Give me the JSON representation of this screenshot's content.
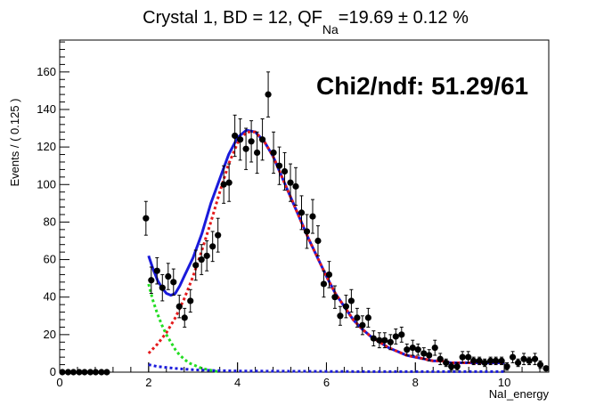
{
  "chart_data": {
    "type": "scatter",
    "title": {
      "prefix": "Crystal 1, BD = 12, QF",
      "subscript": "Na",
      "suffix": "=19.69 ± 0.12 %"
    },
    "xlabel": "NaI_energy",
    "ylabel": "Events / ( 0.125 )",
    "annotation": "Chi2/ndf: 51.29/61",
    "xlim": [
      0,
      11
    ],
    "ylim": [
      0,
      177
    ],
    "x_major_ticks": [
      0,
      2,
      4,
      6,
      8,
      10
    ],
    "y_major_ticks": [
      0,
      20,
      40,
      60,
      80,
      100,
      120,
      140,
      160
    ],
    "x_minor_step": 0.4,
    "y_minor_step": 4,
    "grid": false,
    "legend": "none",
    "series": [
      {
        "kind": "points_with_errors",
        "color": "#000000",
        "x": [
          0.06,
          0.19,
          0.31,
          0.44,
          0.56,
          0.69,
          0.81,
          0.94,
          1.06,
          1.94,
          2.06,
          2.19,
          2.31,
          2.44,
          2.56,
          2.69,
          2.81,
          2.94,
          3.06,
          3.19,
          3.31,
          3.44,
          3.56,
          3.69,
          3.81,
          3.94,
          4.06,
          4.19,
          4.31,
          4.44,
          4.56,
          4.69,
          4.81,
          4.94,
          5.06,
          5.19,
          5.31,
          5.44,
          5.56,
          5.69,
          5.81,
          5.94,
          6.06,
          6.19,
          6.31,
          6.44,
          6.56,
          6.69,
          6.81,
          6.94,
          7.06,
          7.19,
          7.31,
          7.44,
          7.56,
          7.69,
          7.81,
          7.94,
          8.06,
          8.19,
          8.31,
          8.44,
          8.56,
          8.69,
          8.81,
          8.94,
          9.06,
          9.19,
          9.31,
          9.44,
          9.56,
          9.69,
          9.81,
          9.94,
          10.06,
          10.19,
          10.31,
          10.44,
          10.56,
          10.69,
          10.81,
          10.94
        ],
        "y": [
          0,
          0,
          0,
          0,
          0,
          0,
          0,
          0,
          0,
          82,
          49,
          54,
          45,
          51,
          48,
          35,
          29,
          38,
          57,
          60,
          62,
          67,
          73,
          100,
          101,
          126,
          124,
          119,
          123,
          117,
          124,
          148,
          117,
          110,
          107,
          101,
          99,
          85,
          75,
          83,
          70,
          47,
          52,
          40,
          30,
          35,
          38,
          29,
          25,
          29,
          18,
          17,
          17,
          16,
          19,
          20,
          12,
          13,
          12,
          10,
          9,
          13,
          7,
          5,
          3,
          3,
          8,
          8,
          6,
          6,
          5,
          6,
          6,
          6,
          3,
          8,
          5,
          7,
          6,
          7,
          4,
          2
        ],
        "err": [
          0,
          0,
          0,
          0,
          0,
          0,
          0,
          0,
          0,
          9,
          7,
          7,
          7,
          7,
          7,
          6,
          5,
          6,
          8,
          8,
          8,
          8,
          9,
          10,
          10,
          11,
          11,
          11,
          11,
          11,
          11,
          12,
          11,
          10,
          10,
          10,
          10,
          9,
          9,
          9,
          8,
          7,
          7,
          6,
          5,
          6,
          6,
          5,
          5,
          5,
          4,
          4,
          4,
          4,
          4,
          4,
          3,
          4,
          3,
          3,
          3,
          4,
          3,
          2,
          2,
          2,
          3,
          3,
          2,
          2,
          2,
          2,
          2,
          2,
          2,
          3,
          2,
          3,
          2,
          3,
          2,
          1
        ]
      },
      {
        "kind": "curve",
        "color": "#1a1adb",
        "dash": "solid",
        "x": [
          2.0,
          2.1,
          2.2,
          2.3,
          2.4,
          2.5,
          2.6,
          2.7,
          2.8,
          3.0,
          3.2,
          3.4,
          3.6,
          3.8,
          4.0,
          4.2,
          4.4,
          4.6,
          4.8,
          5.0,
          5.2,
          5.4,
          5.6,
          5.8,
          6.0,
          6.2,
          6.4,
          6.6,
          6.8,
          7.0,
          7.2,
          7.4,
          7.6,
          7.8,
          8.0,
          8.2,
          8.4,
          8.6,
          8.8,
          9.0,
          9.2,
          9.4,
          9.6,
          9.8,
          10.0
        ],
        "y": [
          62,
          55,
          49,
          45,
          42,
          41,
          42,
          46,
          51,
          61,
          74,
          90,
          103,
          116,
          125,
          129,
          128,
          123,
          115,
          104,
          93,
          82,
          71,
          61,
          51,
          42,
          35,
          28,
          23,
          19,
          16,
          13,
          11,
          9,
          8,
          7,
          6,
          6,
          5,
          5,
          5,
          5,
          5,
          5,
          5
        ]
      },
      {
        "kind": "curve",
        "color": "#e41a1c",
        "dash": "dotted",
        "x": [
          2.0,
          2.2,
          2.4,
          2.6,
          2.8,
          3.0,
          3.2,
          3.4,
          3.6,
          3.8,
          4.0,
          4.2,
          4.4,
          4.6,
          4.8,
          5.0,
          5.2,
          5.4,
          5.6,
          5.8,
          6.0,
          6.2,
          6.4,
          6.6,
          6.8,
          7.0,
          7.2,
          7.4,
          7.6,
          7.8,
          8.0,
          8.2,
          8.4,
          8.6,
          8.8,
          9.0,
          9.2,
          9.4,
          9.6,
          9.8,
          10.0
        ],
        "y": [
          10,
          15,
          21,
          29,
          39,
          51,
          65,
          80,
          96,
          111,
          122,
          128,
          128,
          123,
          115,
          104,
          93,
          82,
          71,
          61,
          51,
          42,
          35,
          28,
          23,
          19,
          16,
          13,
          11,
          9,
          8,
          7,
          6,
          6,
          5,
          5,
          5,
          5,
          5,
          5,
          5
        ]
      },
      {
        "kind": "curve",
        "color": "#22dd22",
        "dash": "dotted",
        "x": [
          2.0,
          2.1,
          2.2,
          2.3,
          2.4,
          2.5,
          2.6,
          2.7,
          2.8,
          2.9,
          3.0,
          3.1,
          3.2,
          3.3,
          3.4,
          3.5,
          3.6
        ],
        "y": [
          47,
          38,
          31,
          25,
          20,
          16,
          12,
          9,
          7,
          5,
          4,
          3,
          2,
          1.5,
          1,
          0.5,
          0.2
        ]
      },
      {
        "kind": "curve",
        "color": "#1a1adb",
        "dash": "dotted",
        "x": [
          2.0,
          2.2,
          2.4,
          2.6,
          2.8,
          3.0,
          3.2,
          3.4,
          3.6,
          3.8,
          4.0,
          5.0,
          6.0,
          7.0,
          8.0,
          9.0,
          10.0
        ],
        "y": [
          4,
          3,
          2.5,
          2,
          1.6,
          1.3,
          1.1,
          0.9,
          0.8,
          0.7,
          0.6,
          0.5,
          0.4,
          0.3,
          0.3,
          0.3,
          0.3
        ]
      }
    ]
  }
}
